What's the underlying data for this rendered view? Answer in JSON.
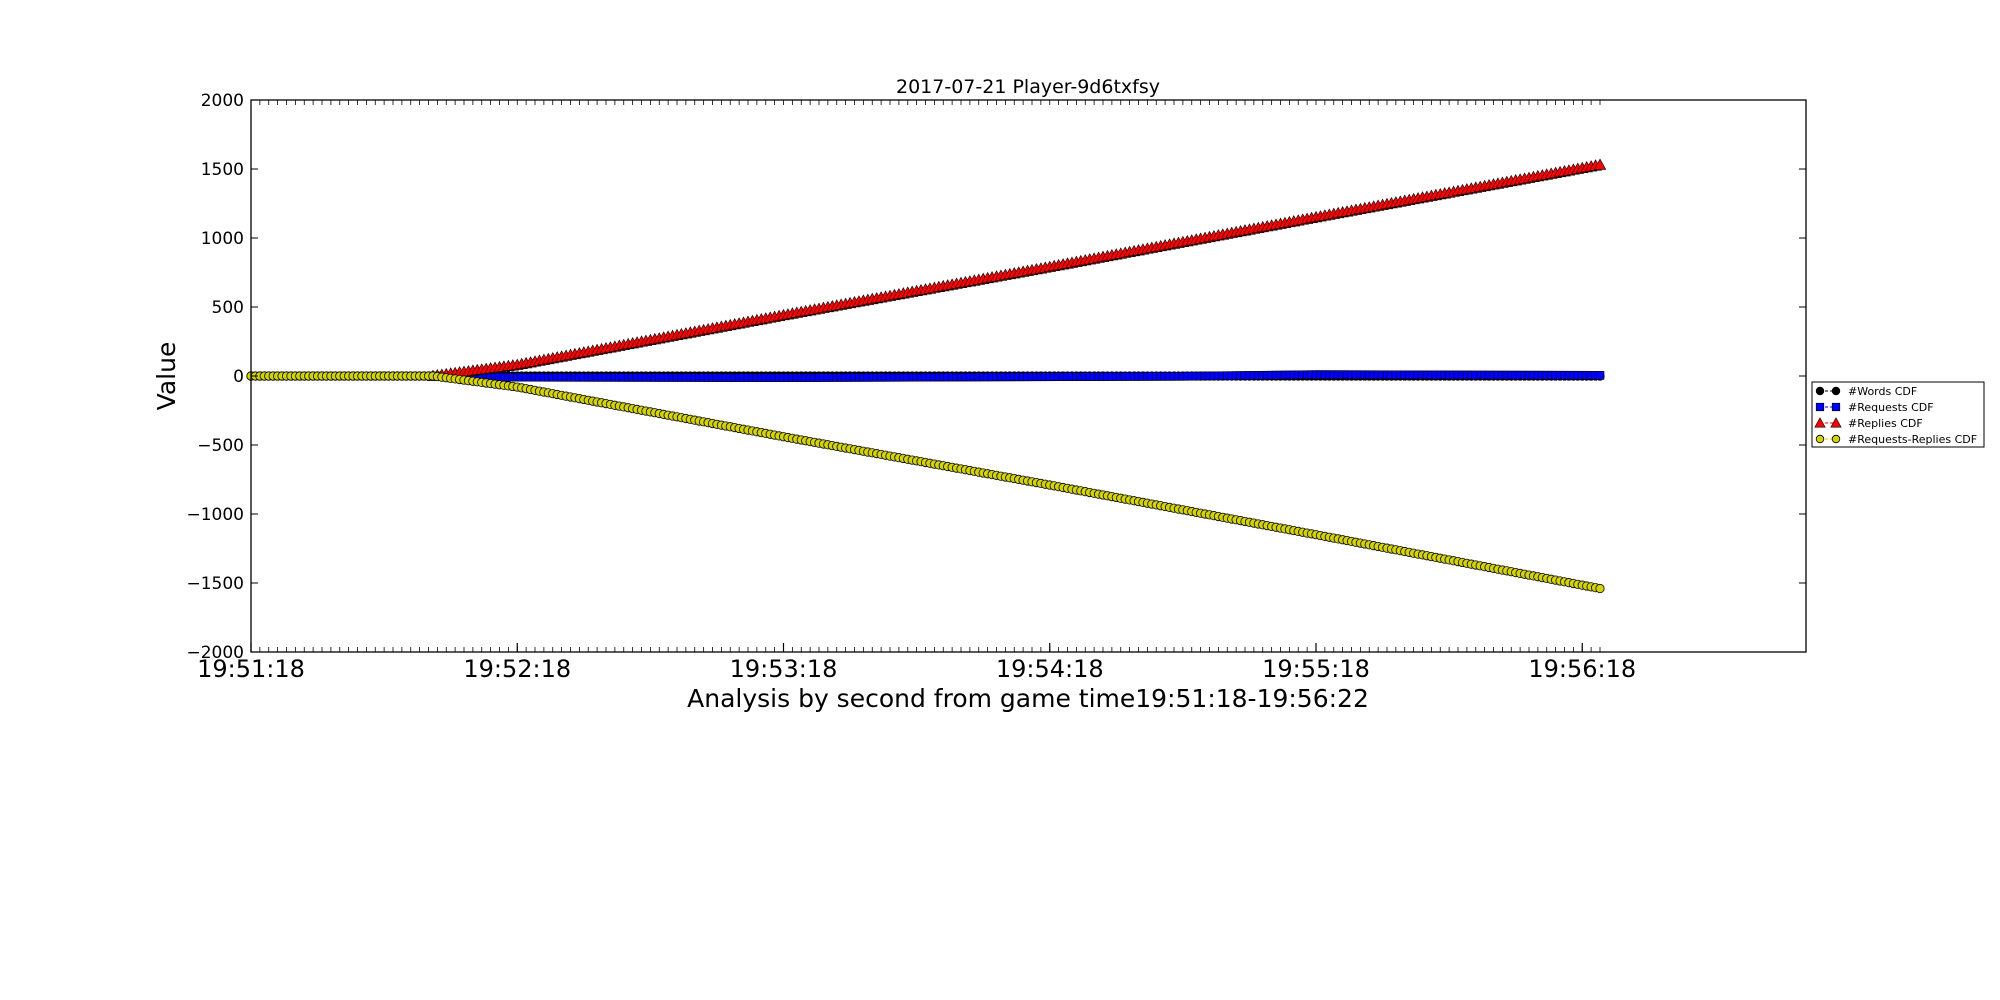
{
  "chart_data": {
    "type": "line",
    "title": "2017-07-21 Player-9d6txfsy",
    "xlabel": "Analysis by second from game time19:51:18-19:56:22",
    "ylabel": "Value",
    "x_start": "19:51:18",
    "x_end": "19:56:22",
    "x_ticks": [
      "19:51:18",
      "19:52:18",
      "19:53:18",
      "19:54:18",
      "19:55:18",
      "19:56:18"
    ],
    "ylim": [
      -2000,
      2000
    ],
    "y_ticks": [
      -2000,
      -1500,
      -1000,
      -500,
      0,
      500,
      1000,
      1500,
      2000
    ],
    "y_tick_labels": [
      "−2000",
      "−1500",
      "−1000",
      "−500",
      "0",
      "500",
      "1000",
      "1500",
      "2000"
    ],
    "legend_position": "outside-right",
    "series": [
      {
        "name": "#Words CDF",
        "color": "#000000",
        "marker": "circle",
        "points": [
          [
            "19:51:18",
            0
          ],
          [
            "19:51:59",
            0
          ],
          [
            "19:56:22",
            0
          ]
        ]
      },
      {
        "name": "#Requests CDF",
        "color": "#0000ff",
        "marker": "square",
        "points": [
          [
            "19:51:18",
            0
          ],
          [
            "19:51:59",
            0
          ],
          [
            "19:52:08",
            -8
          ],
          [
            "19:53:18",
            -12
          ],
          [
            "19:54:48",
            -2
          ],
          [
            "19:55:18",
            10
          ],
          [
            "19:56:22",
            5
          ]
        ]
      },
      {
        "name": "#Replies CDF",
        "color": "#ff0000",
        "marker": "triangle",
        "points": [
          [
            "19:51:18",
            0
          ],
          [
            "19:51:59",
            0
          ],
          [
            "19:52:18",
            80
          ],
          [
            "19:53:18",
            440
          ],
          [
            "19:54:18",
            790
          ],
          [
            "19:55:18",
            1150
          ],
          [
            "19:56:22",
            1530
          ]
        ]
      },
      {
        "name": "#Requests-Replies CDF",
        "color": "#d4d400",
        "marker": "circle",
        "points": [
          [
            "19:51:18",
            0
          ],
          [
            "19:51:59",
            0
          ],
          [
            "19:52:18",
            -80
          ],
          [
            "19:53:18",
            -440
          ],
          [
            "19:54:18",
            -790
          ],
          [
            "19:55:18",
            -1150
          ],
          [
            "19:56:22",
            -1540
          ]
        ]
      }
    ]
  }
}
